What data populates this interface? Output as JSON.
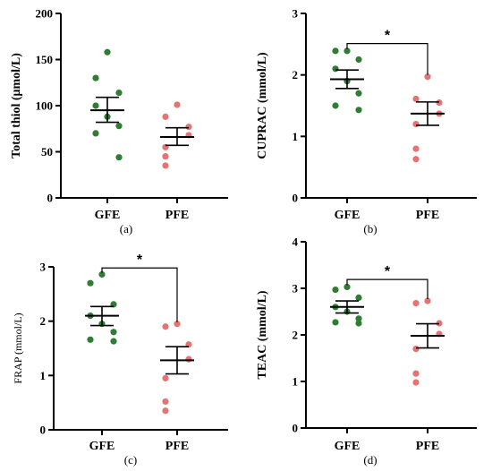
{
  "colors": {
    "GFE": "#2e7d32",
    "PFE": "#e57373"
  },
  "chart_data": [
    {
      "type": "scatter",
      "panel": "(a)",
      "ylabel": "Total thiol (μmol/L)",
      "ylim": [
        0,
        200
      ],
      "yticks": [
        0,
        50,
        100,
        150,
        200
      ],
      "categories": [
        "GFE",
        "PFE"
      ],
      "series": [
        {
          "category": "GFE",
          "values": [
            158,
            130,
            114,
            100,
            88,
            78,
            70,
            44
          ],
          "mean": 95,
          "sem_upper": 109,
          "sem_lower": 82
        },
        {
          "category": "PFE",
          "values": [
            101,
            88,
            77,
            68,
            55,
            45,
            35
          ],
          "mean": 66,
          "sem_upper": 76,
          "sem_lower": 57
        }
      ],
      "significance": ""
    },
    {
      "type": "scatter",
      "panel": "(b)",
      "ylabel": "CUPRAC (mmol/L)",
      "ylim": [
        0,
        3
      ],
      "yticks": [
        0,
        1,
        2,
        3
      ],
      "categories": [
        "GFE",
        "PFE"
      ],
      "series": [
        {
          "category": "GFE",
          "values": [
            2.39,
            2.39,
            2.25,
            2.1,
            1.9,
            1.7,
            1.5,
            1.43
          ],
          "mean": 1.93,
          "sem_upper": 2.08,
          "sem_lower": 1.78
        },
        {
          "category": "PFE",
          "values": [
            1.97,
            1.61,
            1.55,
            1.37,
            1.2,
            0.8,
            0.63
          ],
          "mean": 1.37,
          "sem_upper": 1.56,
          "sem_lower": 1.18
        }
      ],
      "significance": "*"
    },
    {
      "type": "scatter",
      "panel": "(c)",
      "ylabel": "FRAP (mmol/L)",
      "ylim": [
        0,
        3
      ],
      "yticks": [
        0,
        1,
        2,
        3
      ],
      "categories": [
        "GFE",
        "PFE"
      ],
      "series": [
        {
          "category": "GFE",
          "values": [
            2.86,
            2.7,
            2.31,
            2.1,
            1.95,
            1.8,
            1.66,
            1.63
          ],
          "mean": 2.1,
          "sem_upper": 2.27,
          "sem_lower": 1.92
        },
        {
          "category": "PFE",
          "values": [
            1.95,
            1.9,
            1.57,
            1.3,
            0.95,
            0.52,
            0.35
          ],
          "mean": 1.28,
          "sem_upper": 1.53,
          "sem_lower": 1.03
        }
      ],
      "significance": "*"
    },
    {
      "type": "scatter",
      "panel": "(d)",
      "ylabel": "TEAC (mmol/L)",
      "ylim": [
        0,
        4
      ],
      "yticks": [
        0,
        1,
        2,
        3,
        4
      ],
      "categories": [
        "GFE",
        "PFE"
      ],
      "series": [
        {
          "category": "GFE",
          "values": [
            3.03,
            2.97,
            2.8,
            2.6,
            2.5,
            2.35,
            2.27,
            2.25
          ],
          "mean": 2.6,
          "sem_upper": 2.73,
          "sem_lower": 2.47
        },
        {
          "category": "PFE",
          "values": [
            2.73,
            2.68,
            2.25,
            2.02,
            1.7,
            1.17,
            0.98
          ],
          "mean": 1.98,
          "sem_upper": 2.24,
          "sem_lower": 1.72
        }
      ],
      "significance": "*"
    }
  ]
}
